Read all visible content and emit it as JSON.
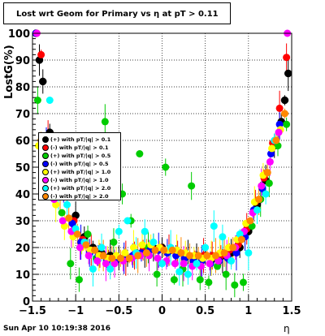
{
  "title": "Lost wrt Geom for Primary vs   η at pT > 0.11",
  "datestamp": "Sun Apr 10 10:19:38 2016",
  "chart_data": {
    "type": "scatter",
    "xlabel": "η",
    "ylabel": "LostG(%)",
    "xlim": [
      -1.5,
      1.5
    ],
    "ylim": [
      0,
      100
    ],
    "grid": true,
    "legend_position": "left-middle",
    "x_ticks": [
      "−1.5",
      "−1",
      "−0.5",
      "0",
      "0.5",
      "1",
      "1.5"
    ],
    "y_ticks": [
      "0",
      "10",
      "20",
      "30",
      "40",
      "50",
      "60",
      "70",
      "80",
      "90",
      "100"
    ],
    "series": [
      {
        "name": "(+) with pT/|q| > 0.1",
        "color": "#000000",
        "marker": "open-circle",
        "x": [
          -1.46,
          -1.42,
          -1.38,
          -1.3,
          -1.2,
          -1.1,
          -1.0,
          -0.9,
          -0.8,
          -0.7,
          -0.6,
          -0.5,
          -0.4,
          -0.3,
          -0.2,
          -0.1,
          0.0,
          0.1,
          0.2,
          0.3,
          0.4,
          0.5,
          0.6,
          0.7,
          0.8,
          0.9,
          1.0,
          1.1,
          1.2,
          1.3,
          1.38,
          1.42,
          1.46
        ],
        "y": [
          100,
          90,
          82,
          63,
          52,
          44,
          32,
          24,
          20,
          18,
          17,
          16,
          16,
          18,
          19,
          20,
          20,
          19,
          18,
          17,
          17,
          17,
          16,
          17,
          18,
          20,
          26,
          36,
          45,
          58,
          67,
          75,
          85
        ]
      },
      {
        "name": "(-) with pT/|q| > 0.1",
        "color": "#ff0000",
        "x": [
          -1.45,
          -1.4,
          -1.32,
          -1.22,
          -1.12,
          -1.02,
          -0.92,
          -0.82,
          -0.72,
          -0.62,
          -0.52,
          -0.42,
          -0.32,
          -0.22,
          -0.12,
          -0.02,
          0.08,
          0.18,
          0.28,
          0.38,
          0.48,
          0.58,
          0.68,
          0.78,
          0.88,
          0.98,
          1.08,
          1.18,
          1.28,
          1.36,
          1.44
        ],
        "y": [
          100,
          92,
          61,
          50,
          42,
          30,
          23,
          19,
          17,
          16,
          16,
          16,
          17,
          19,
          20,
          20,
          19,
          18,
          17,
          17,
          17,
          17,
          17,
          19,
          21,
          27,
          37,
          46,
          59,
          72,
          91
        ]
      },
      {
        "name": "(+) with pT/|q| > 0.5",
        "color": "#00cc00",
        "x": [
          -1.44,
          -1.36,
          -1.26,
          -1.16,
          -1.06,
          -0.96,
          -0.86,
          -0.76,
          -0.66,
          -0.56,
          -0.46,
          -0.36,
          -0.26,
          -0.16,
          -0.06,
          0.04,
          0.14,
          0.24,
          0.34,
          0.44,
          0.54,
          0.64,
          0.74,
          0.84,
          0.94,
          1.04,
          1.14,
          1.24,
          1.34,
          1.44
        ],
        "y": [
          75,
          55,
          45,
          33,
          14,
          8,
          25,
          16,
          67,
          22,
          40,
          30,
          55,
          20,
          10,
          50,
          8,
          12,
          43,
          8,
          7,
          13,
          10,
          6,
          7,
          28,
          38,
          44,
          58,
          66
        ]
      },
      {
        "name": "(-) with pT/|q| > 0.5",
        "color": "#0000ff",
        "x": [
          -1.46,
          -1.34,
          -1.24,
          -1.14,
          -1.04,
          -0.94,
          -0.84,
          -0.74,
          -0.64,
          -0.54,
          -0.44,
          -0.34,
          -0.24,
          -0.14,
          -0.04,
          0.06,
          0.16,
          0.26,
          0.36,
          0.46,
          0.56,
          0.66,
          0.76,
          0.86,
          0.96,
          1.06,
          1.16,
          1.26,
          1.36
        ],
        "y": [
          100,
          59,
          48,
          40,
          29,
          22,
          18,
          17,
          15,
          15,
          16,
          17,
          18,
          19,
          19,
          18,
          17,
          16,
          15,
          15,
          14,
          15,
          16,
          18,
          24,
          34,
          42,
          55,
          66
        ]
      },
      {
        "name": "(+) with pT/|q| > 1.0",
        "color": "#ffff00",
        "x": [
          -1.43,
          -1.33,
          -1.23,
          -1.13,
          -1.03,
          -0.93,
          -0.83,
          -0.73,
          -0.63,
          -0.53,
          -0.43,
          -0.33,
          -0.23,
          -0.13,
          -0.03,
          0.07,
          0.17,
          0.27,
          0.37,
          0.47,
          0.57,
          0.67,
          0.77,
          0.87,
          0.97,
          1.07,
          1.17,
          1.27,
          1.37
        ],
        "y": [
          58,
          49,
          36,
          28,
          24,
          20,
          19,
          17,
          16,
          17,
          18,
          20,
          21,
          21,
          20,
          19,
          19,
          18,
          17,
          16,
          16,
          18,
          20,
          23,
          29,
          37,
          47,
          57,
          64
        ]
      },
      {
        "name": "(-) with pT/|q| > 1.0",
        "color": "#ff00ff",
        "x": [
          -1.45,
          -1.35,
          -1.25,
          -1.15,
          -1.05,
          -0.95,
          -0.85,
          -0.75,
          -0.65,
          -0.55,
          -0.45,
          -0.35,
          -0.25,
          -0.15,
          -0.05,
          0.05,
          0.15,
          0.25,
          0.35,
          0.45,
          0.55,
          0.65,
          0.75,
          0.85,
          0.95,
          1.05,
          1.15,
          1.25,
          1.35,
          1.45
        ],
        "y": [
          100,
          44,
          38,
          30,
          26,
          20,
          17,
          15,
          14,
          14,
          15,
          16,
          17,
          17,
          16,
          15,
          14,
          14,
          13,
          13,
          14,
          15,
          17,
          20,
          26,
          33,
          43,
          52,
          63,
          100
        ]
      },
      {
        "name": "(+) with pT/|q| > 2.0",
        "color": "#00ffff",
        "x": [
          -1.3,
          -1.2,
          -1.1,
          -1.0,
          -0.9,
          -0.8,
          -0.7,
          -0.6,
          -0.5,
          -0.4,
          -0.3,
          -0.2,
          -0.1,
          0.0,
          0.1,
          0.2,
          0.3,
          0.4,
          0.5,
          0.6,
          0.7,
          0.8,
          0.9,
          1.0,
          1.1,
          1.2,
          1.3
        ],
        "y": [
          75,
          40,
          36,
          27,
          22,
          12,
          20,
          12,
          26,
          30,
          18,
          26,
          22,
          14,
          20,
          11,
          10,
          14,
          20,
          28,
          24,
          15,
          25,
          18,
          34,
          40,
          60
        ]
      },
      {
        "name": "(-) with pT/|q| > 2.0",
        "color": "#ff8800",
        "x": [
          -1.4,
          -1.28,
          -1.18,
          -1.08,
          -0.98,
          -0.88,
          -0.78,
          -0.68,
          -0.58,
          -0.48,
          -0.38,
          -0.28,
          -0.18,
          -0.08,
          0.02,
          0.12,
          0.22,
          0.32,
          0.42,
          0.52,
          0.62,
          0.72,
          0.82,
          0.92,
          1.02,
          1.12,
          1.22,
          1.32,
          1.42
        ],
        "y": [
          60,
          47,
          39,
          31,
          25,
          21,
          19,
          17,
          16,
          16,
          16,
          17,
          18,
          19,
          19,
          19,
          18,
          17,
          17,
          17,
          17,
          18,
          20,
          23,
          30,
          38,
          48,
          60,
          70
        ]
      }
    ]
  },
  "colors": {
    "background": "#ffffff",
    "axis": "#000000"
  }
}
